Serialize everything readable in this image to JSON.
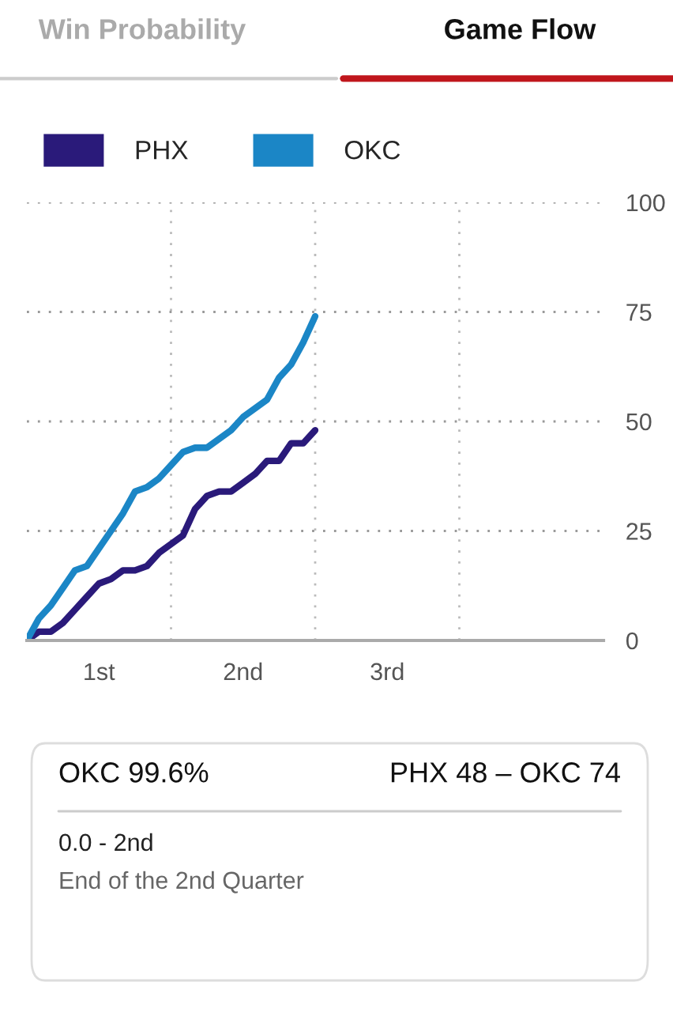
{
  "chart_data": {
    "type": "line",
    "annotations": [
      "Win Probability",
      "Game Flow",
      "OKC 99.6%",
      "PHX 48 – OKC 74",
      "0.0 - 2nd",
      "End of the 2nd Quarter"
    ],
    "categories": [
      null,
      null,
      null,
      null,
      null,
      null,
      "1st",
      null,
      null,
      null,
      null,
      null,
      null,
      null,
      null,
      null,
      null,
      null,
      "2nd",
      null,
      null,
      null,
      null,
      null,
      null,
      null,
      null,
      null,
      null,
      null,
      "3rd",
      null,
      null,
      null,
      null,
      null,
      null,
      null,
      null,
      null,
      null,
      null,
      null,
      null,
      null,
      null,
      null,
      null,
      null
    ],
    "series": [
      {
        "name": "PHX",
        "color": "#2a1a7a",
        "values": [
          0,
          2,
          2,
          4,
          7,
          10,
          13,
          14,
          16,
          16,
          17,
          20,
          22,
          24,
          30,
          33,
          34,
          34,
          36,
          38,
          41,
          41,
          45,
          45,
          48,
          null,
          null,
          null,
          null,
          null,
          null,
          null,
          null,
          null,
          null,
          null,
          null,
          null,
          null,
          null,
          null,
          null,
          null,
          null,
          null,
          null,
          null,
          null,
          null
        ]
      },
      {
        "name": "OKC",
        "color": "#1b86c6",
        "values": [
          0,
          5,
          8,
          12,
          16,
          17,
          21,
          25,
          29,
          34,
          35,
          37,
          40,
          43,
          44,
          44,
          46,
          48,
          51,
          53,
          55,
          60,
          63,
          68,
          74,
          null,
          null,
          null,
          null,
          null,
          null,
          null,
          null,
          null,
          null,
          null,
          null,
          null,
          null,
          null,
          null,
          null,
          null,
          null,
          null,
          null,
          null,
          null,
          null
        ]
      }
    ],
    "ylim": [
      0,
      100
    ],
    "yticks": [
      0,
      25,
      50,
      75,
      100
    ],
    "grid": "y",
    "line_style": "solid",
    "legend": "top left"
  }
}
